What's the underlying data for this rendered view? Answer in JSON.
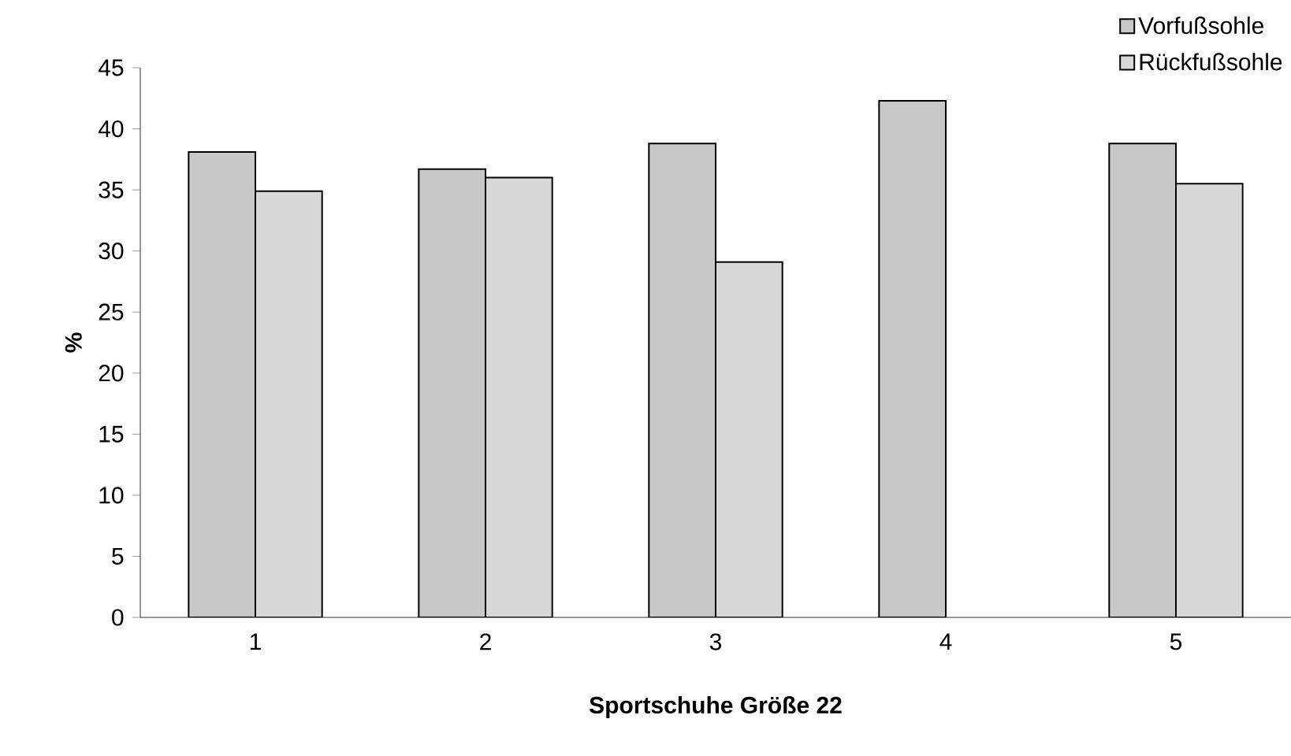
{
  "chart_data": {
    "type": "bar",
    "xlabel": "Sportschuhe Größe 22",
    "ylabel": "%",
    "categories": [
      "1",
      "2",
      "3",
      "4",
      "5"
    ],
    "series": [
      {
        "name": "Vorfußsohle",
        "color": "#c8c8c8",
        "values": [
          38.1,
          36.7,
          38.8,
          42.3,
          38.8
        ]
      },
      {
        "name": "Rückfußsohle",
        "color": "#d8d8d8",
        "values": [
          34.9,
          36.0,
          29.1,
          null,
          35.5
        ]
      }
    ],
    "ylim": [
      0,
      45
    ],
    "yticks": [
      0,
      5,
      10,
      15,
      20,
      25,
      30,
      35,
      40,
      45
    ],
    "grid": false,
    "legend": "top right"
  }
}
